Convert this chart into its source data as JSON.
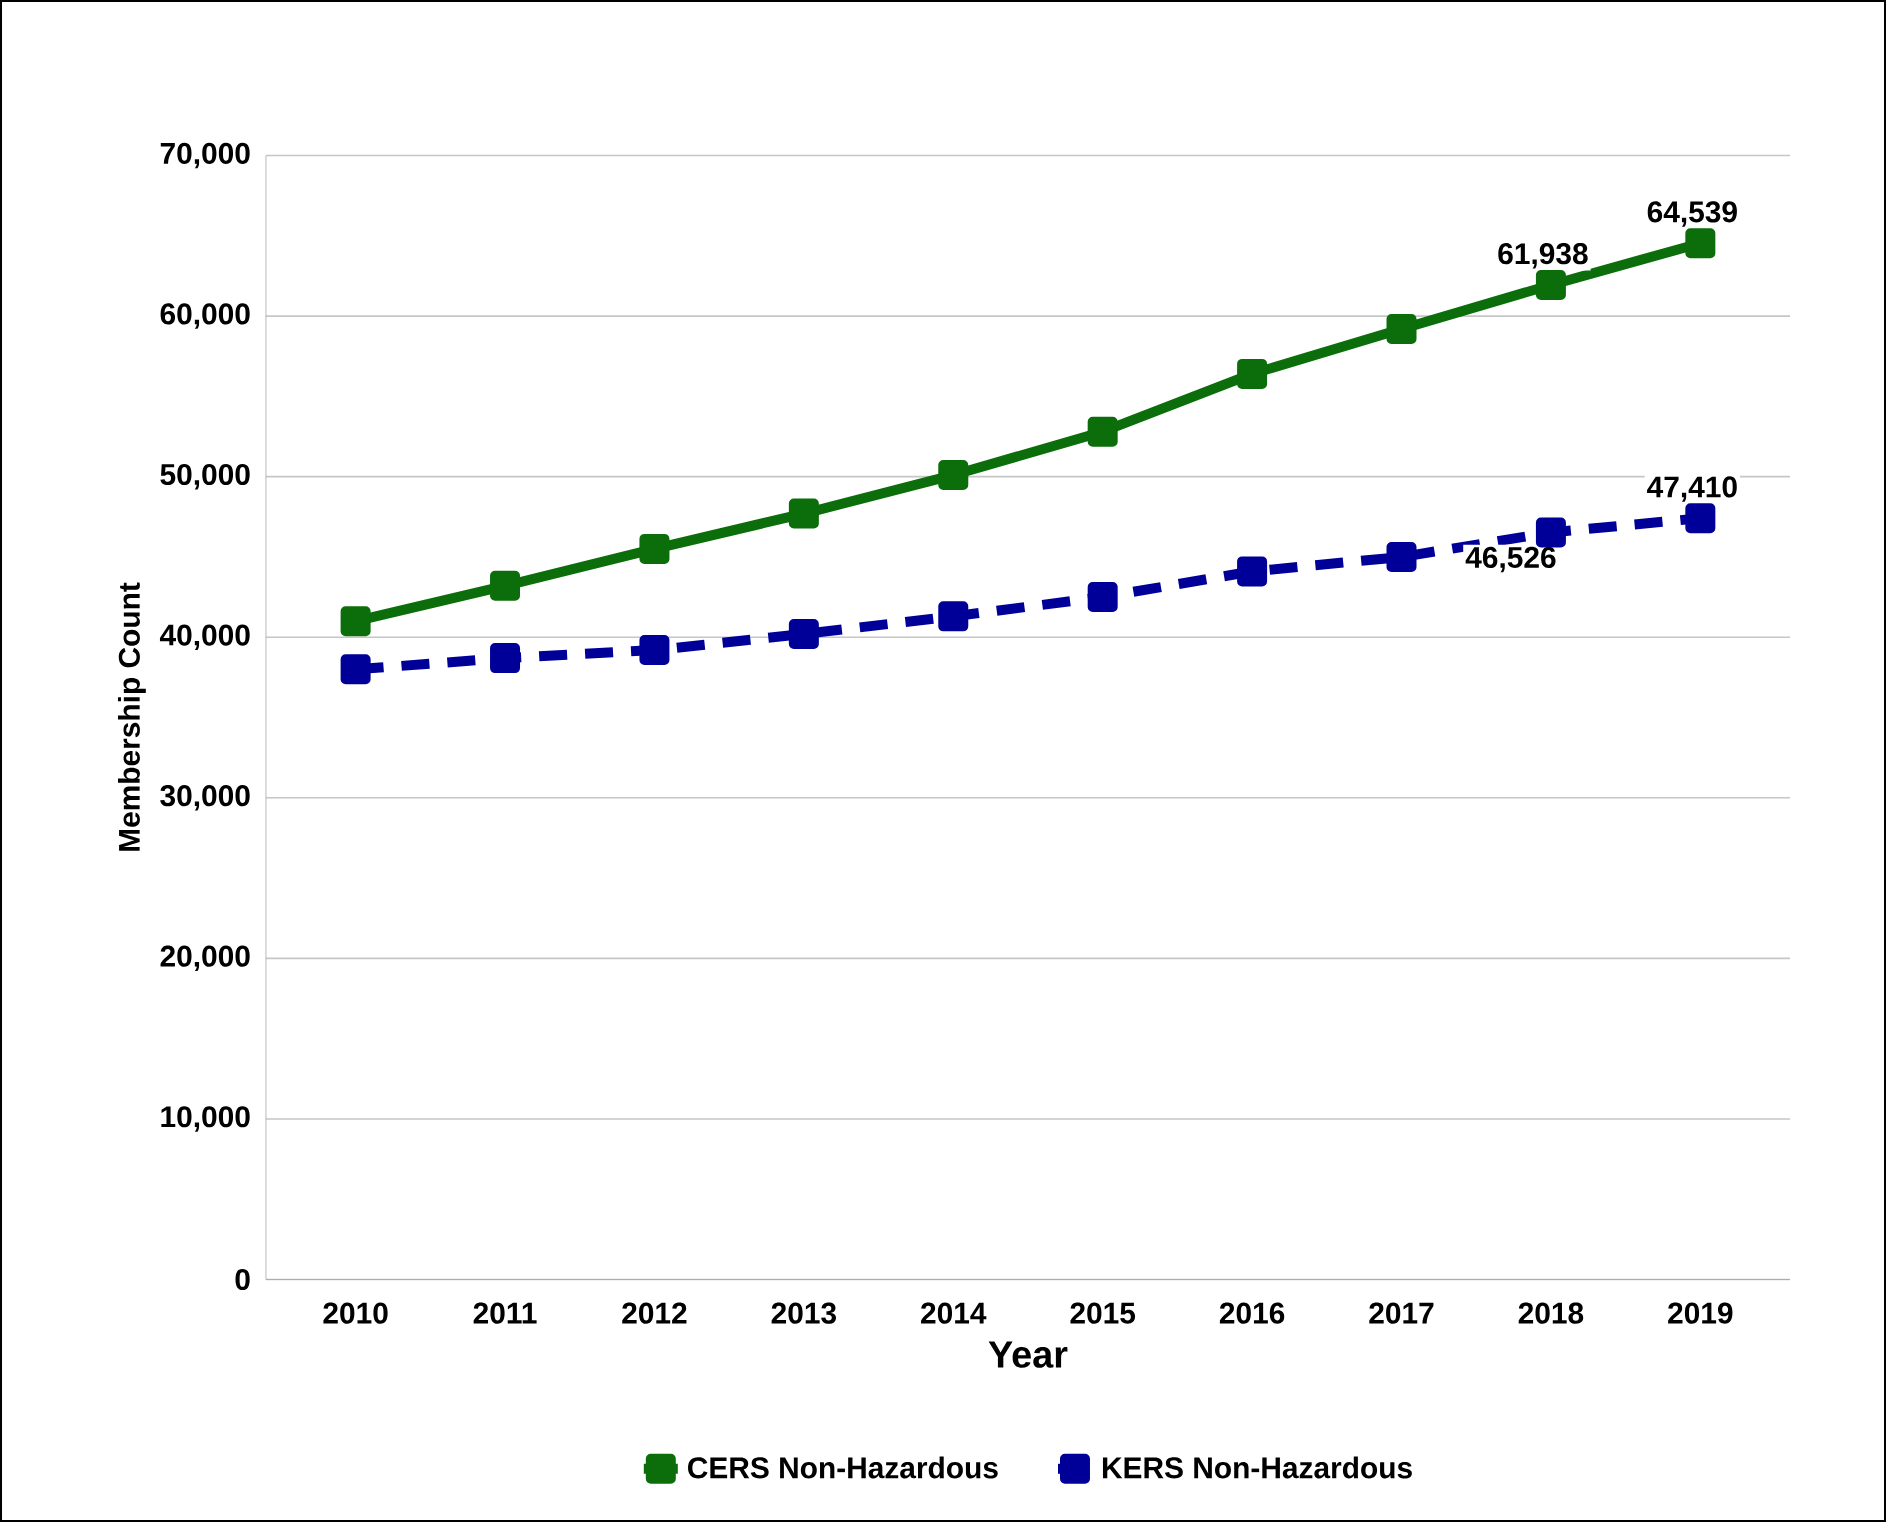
{
  "chart_data": {
    "type": "line",
    "xlabel": "Year",
    "ylabel": "Membership Count",
    "categories": [
      "2010",
      "2011",
      "2012",
      "2013",
      "2014",
      "2015",
      "2016",
      "2017",
      "2018",
      "2019"
    ],
    "series": [
      {
        "name": "CERS Non-Hazardous",
        "color": "#0b6e0b",
        "line_style": "solid",
        "values": [
          41000,
          43200,
          45500,
          47700,
          50100,
          52800,
          56400,
          59200,
          61938,
          64539
        ],
        "value_labels": [
          null,
          null,
          null,
          null,
          null,
          null,
          null,
          null,
          "61,938",
          "64,539"
        ]
      },
      {
        "name": "KERS Non-Hazardous",
        "color": "#000099",
        "line_style": "dashed",
        "values": [
          38000,
          38700,
          39200,
          40200,
          41300,
          42500,
          44100,
          45000,
          46526,
          47410
        ],
        "value_labels": [
          null,
          null,
          null,
          null,
          null,
          null,
          null,
          null,
          "46,526",
          "47,410"
        ]
      }
    ],
    "ylim": [
      0,
      70000
    ],
    "yticks": [
      {
        "value": 0,
        "label": "0"
      },
      {
        "value": 10000,
        "label": "10,000"
      },
      {
        "value": 20000,
        "label": "20,000"
      },
      {
        "value": 30000,
        "label": "30,000"
      },
      {
        "value": 40000,
        "label": "40,000"
      },
      {
        "value": 50000,
        "label": "50,000"
      },
      {
        "value": 60000,
        "label": "60,000"
      },
      {
        "value": 70000,
        "label": "70,000"
      }
    ],
    "grid": "y",
    "legend": "bottom",
    "marker": "square"
  }
}
